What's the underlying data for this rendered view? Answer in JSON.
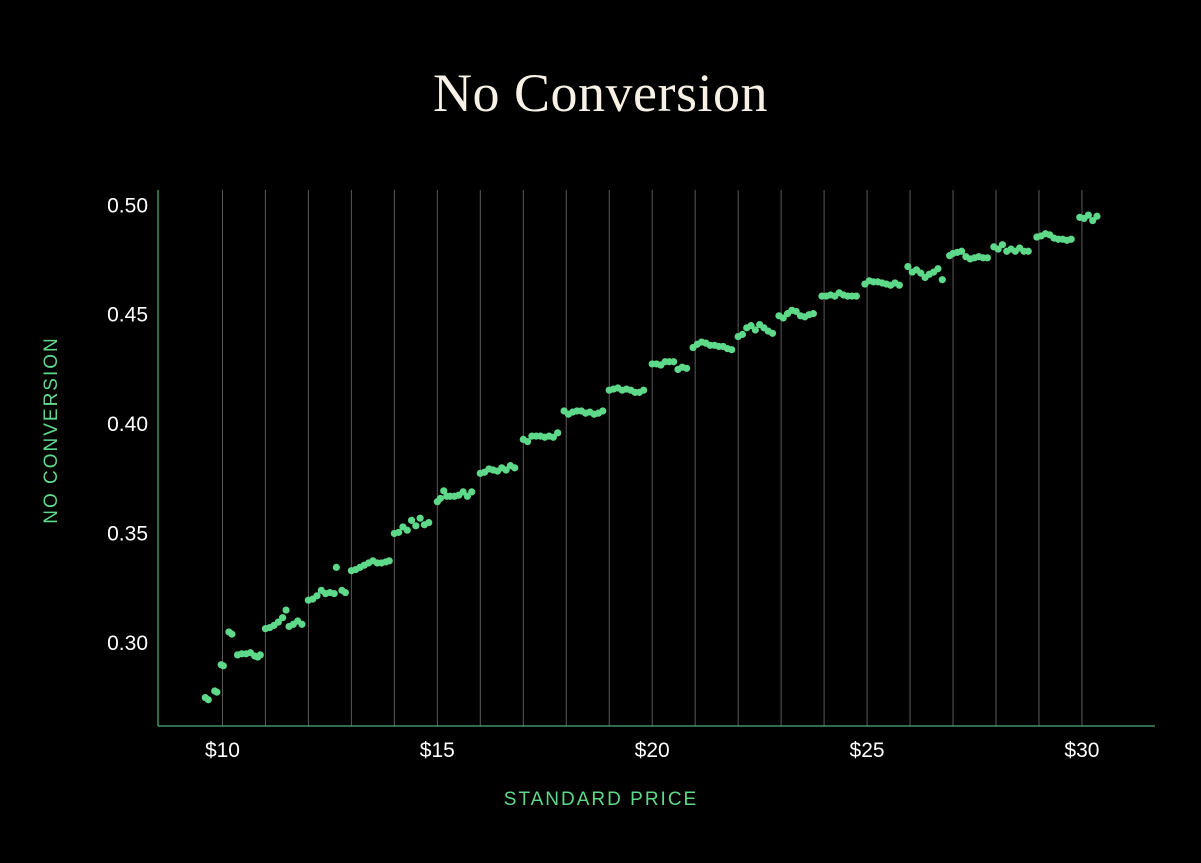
{
  "chart_data": {
    "type": "scatter",
    "title": "No Conversion",
    "xlabel": "STANDARD PRICE",
    "ylabel": "NO CONVERSION",
    "xlim": [
      8.5,
      31.7
    ],
    "ylim": [
      0.262,
      0.507
    ],
    "x_ticks": [
      10,
      15,
      20,
      25,
      30
    ],
    "x_tick_labels": [
      "$10",
      "$15",
      "$20",
      "$25",
      "$30"
    ],
    "y_ticks": [
      0.3,
      0.35,
      0.4,
      0.45,
      0.5
    ],
    "y_tick_labels": [
      "0.30",
      "0.35",
      "0.40",
      "0.45",
      "0.50"
    ],
    "vertical_gridlines_at": [
      10,
      11,
      12,
      13,
      14,
      15,
      16,
      17,
      18,
      19,
      20,
      21,
      22,
      23,
      24,
      25,
      26,
      27,
      28,
      29,
      30
    ],
    "grid": "vertical",
    "colors": {
      "background": "#000000",
      "points": "#5ed98a",
      "axis": "#5ed98a",
      "grid": "#5a5a5a",
      "title": "#f7f1e6",
      "tick_labels": "#ffffff"
    },
    "series": [
      {
        "points": [
          [
            9.6,
            0.275
          ],
          [
            9.67,
            0.274
          ],
          [
            9.82,
            0.278
          ],
          [
            9.87,
            0.2775
          ],
          [
            9.97,
            0.29
          ],
          [
            10.02,
            0.2895
          ],
          [
            10.15,
            0.305
          ],
          [
            10.22,
            0.304
          ],
          [
            10.35,
            0.2945
          ],
          [
            10.45,
            0.295
          ],
          [
            10.55,
            0.295
          ],
          [
            10.65,
            0.2955
          ],
          [
            10.75,
            0.294
          ],
          [
            10.82,
            0.2935
          ],
          [
            10.88,
            0.2945
          ],
          [
            11.0,
            0.3065
          ],
          [
            11.1,
            0.307
          ],
          [
            11.2,
            0.308
          ],
          [
            11.3,
            0.3095
          ],
          [
            11.4,
            0.3115
          ],
          [
            11.48,
            0.315
          ],
          [
            11.55,
            0.3075
          ],
          [
            11.65,
            0.3085
          ],
          [
            11.75,
            0.31
          ],
          [
            11.85,
            0.3085
          ],
          [
            12.0,
            0.3195
          ],
          [
            12.1,
            0.32
          ],
          [
            12.2,
            0.3215
          ],
          [
            12.3,
            0.324
          ],
          [
            12.4,
            0.3225
          ],
          [
            12.5,
            0.323
          ],
          [
            12.6,
            0.3225
          ],
          [
            12.65,
            0.3345
          ],
          [
            12.78,
            0.324
          ],
          [
            12.86,
            0.323
          ],
          [
            13.0,
            0.333
          ],
          [
            13.1,
            0.3335
          ],
          [
            13.2,
            0.3345
          ],
          [
            13.3,
            0.3355
          ],
          [
            13.4,
            0.3365
          ],
          [
            13.5,
            0.3375
          ],
          [
            13.6,
            0.3365
          ],
          [
            13.7,
            0.3365
          ],
          [
            13.8,
            0.337
          ],
          [
            13.88,
            0.3375
          ],
          [
            14.0,
            0.35
          ],
          [
            14.1,
            0.3505
          ],
          [
            14.2,
            0.353
          ],
          [
            14.3,
            0.3515
          ],
          [
            14.4,
            0.356
          ],
          [
            14.5,
            0.3535
          ],
          [
            14.6,
            0.357
          ],
          [
            14.7,
            0.354
          ],
          [
            14.8,
            0.355
          ],
          [
            15.0,
            0.3645
          ],
          [
            15.07,
            0.366
          ],
          [
            15.15,
            0.3695
          ],
          [
            15.22,
            0.367
          ],
          [
            15.3,
            0.367
          ],
          [
            15.4,
            0.367
          ],
          [
            15.5,
            0.3675
          ],
          [
            15.6,
            0.369
          ],
          [
            15.7,
            0.367
          ],
          [
            15.8,
            0.369
          ],
          [
            16.0,
            0.3775
          ],
          [
            16.1,
            0.378
          ],
          [
            16.2,
            0.3795
          ],
          [
            16.3,
            0.379
          ],
          [
            16.4,
            0.3785
          ],
          [
            16.5,
            0.38
          ],
          [
            16.6,
            0.379
          ],
          [
            16.7,
            0.381
          ],
          [
            16.8,
            0.38
          ],
          [
            17.0,
            0.393
          ],
          [
            17.1,
            0.392
          ],
          [
            17.2,
            0.3945
          ],
          [
            17.3,
            0.3945
          ],
          [
            17.4,
            0.3945
          ],
          [
            17.5,
            0.394
          ],
          [
            17.6,
            0.3945
          ],
          [
            17.7,
            0.394
          ],
          [
            17.8,
            0.396
          ],
          [
            17.95,
            0.406
          ],
          [
            18.05,
            0.4045
          ],
          [
            18.15,
            0.4055
          ],
          [
            18.25,
            0.406
          ],
          [
            18.35,
            0.406
          ],
          [
            18.45,
            0.405
          ],
          [
            18.55,
            0.4055
          ],
          [
            18.65,
            0.4045
          ],
          [
            18.75,
            0.405
          ],
          [
            18.85,
            0.406
          ],
          [
            19.0,
            0.4155
          ],
          [
            19.1,
            0.416
          ],
          [
            19.2,
            0.4165
          ],
          [
            19.3,
            0.4155
          ],
          [
            19.4,
            0.416
          ],
          [
            19.5,
            0.4155
          ],
          [
            19.6,
            0.4145
          ],
          [
            19.7,
            0.4145
          ],
          [
            19.8,
            0.4155
          ],
          [
            20.0,
            0.4275
          ],
          [
            20.1,
            0.4275
          ],
          [
            20.2,
            0.427
          ],
          [
            20.3,
            0.4285
          ],
          [
            20.4,
            0.4285
          ],
          [
            20.5,
            0.4285
          ],
          [
            20.6,
            0.425
          ],
          [
            20.7,
            0.426
          ],
          [
            20.8,
            0.4255
          ],
          [
            20.95,
            0.435
          ],
          [
            21.05,
            0.4365
          ],
          [
            21.15,
            0.4375
          ],
          [
            21.25,
            0.437
          ],
          [
            21.35,
            0.436
          ],
          [
            21.45,
            0.436
          ],
          [
            21.55,
            0.4355
          ],
          [
            21.65,
            0.4355
          ],
          [
            21.75,
            0.4345
          ],
          [
            21.85,
            0.434
          ],
          [
            22.0,
            0.44
          ],
          [
            22.1,
            0.441
          ],
          [
            22.2,
            0.444
          ],
          [
            22.3,
            0.445
          ],
          [
            22.4,
            0.443
          ],
          [
            22.5,
            0.4455
          ],
          [
            22.6,
            0.444
          ],
          [
            22.7,
            0.4425
          ],
          [
            22.8,
            0.4415
          ],
          [
            22.95,
            0.4495
          ],
          [
            23.05,
            0.4485
          ],
          [
            23.15,
            0.4505
          ],
          [
            23.25,
            0.452
          ],
          [
            23.35,
            0.4515
          ],
          [
            23.45,
            0.4495
          ],
          [
            23.55,
            0.449
          ],
          [
            23.65,
            0.45
          ],
          [
            23.75,
            0.4505
          ],
          [
            23.95,
            0.4585
          ],
          [
            24.05,
            0.4585
          ],
          [
            24.15,
            0.459
          ],
          [
            24.25,
            0.4585
          ],
          [
            24.35,
            0.46
          ],
          [
            24.45,
            0.459
          ],
          [
            24.55,
            0.4585
          ],
          [
            24.65,
            0.4585
          ],
          [
            24.75,
            0.4585
          ],
          [
            24.95,
            0.464
          ],
          [
            25.05,
            0.4655
          ],
          [
            25.15,
            0.465
          ],
          [
            25.25,
            0.465
          ],
          [
            25.35,
            0.4645
          ],
          [
            25.45,
            0.464
          ],
          [
            25.55,
            0.4635
          ],
          [
            25.65,
            0.4645
          ],
          [
            25.75,
            0.4635
          ],
          [
            25.95,
            0.472
          ],
          [
            26.05,
            0.4695
          ],
          [
            26.15,
            0.4705
          ],
          [
            26.25,
            0.469
          ],
          [
            26.35,
            0.467
          ],
          [
            26.45,
            0.4685
          ],
          [
            26.55,
            0.4695
          ],
          [
            26.65,
            0.471
          ],
          [
            26.75,
            0.466
          ],
          [
            26.92,
            0.477
          ],
          [
            27.0,
            0.478
          ],
          [
            27.1,
            0.4785
          ],
          [
            27.2,
            0.479
          ],
          [
            27.3,
            0.4765
          ],
          [
            27.4,
            0.4755
          ],
          [
            27.5,
            0.476
          ],
          [
            27.6,
            0.4765
          ],
          [
            27.7,
            0.476
          ],
          [
            27.8,
            0.476
          ],
          [
            27.95,
            0.481
          ],
          [
            28.05,
            0.48
          ],
          [
            28.15,
            0.482
          ],
          [
            28.25,
            0.479
          ],
          [
            28.35,
            0.48
          ],
          [
            28.45,
            0.479
          ],
          [
            28.55,
            0.4805
          ],
          [
            28.65,
            0.479
          ],
          [
            28.75,
            0.479
          ],
          [
            28.95,
            0.4855
          ],
          [
            29.05,
            0.486
          ],
          [
            29.15,
            0.487
          ],
          [
            29.25,
            0.4865
          ],
          [
            29.35,
            0.485
          ],
          [
            29.45,
            0.4845
          ],
          [
            29.55,
            0.4845
          ],
          [
            29.65,
            0.484
          ],
          [
            29.75,
            0.4845
          ],
          [
            29.95,
            0.4945
          ],
          [
            30.05,
            0.494
          ],
          [
            30.15,
            0.4955
          ],
          [
            30.25,
            0.493
          ],
          [
            30.35,
            0.495
          ]
        ]
      }
    ]
  }
}
